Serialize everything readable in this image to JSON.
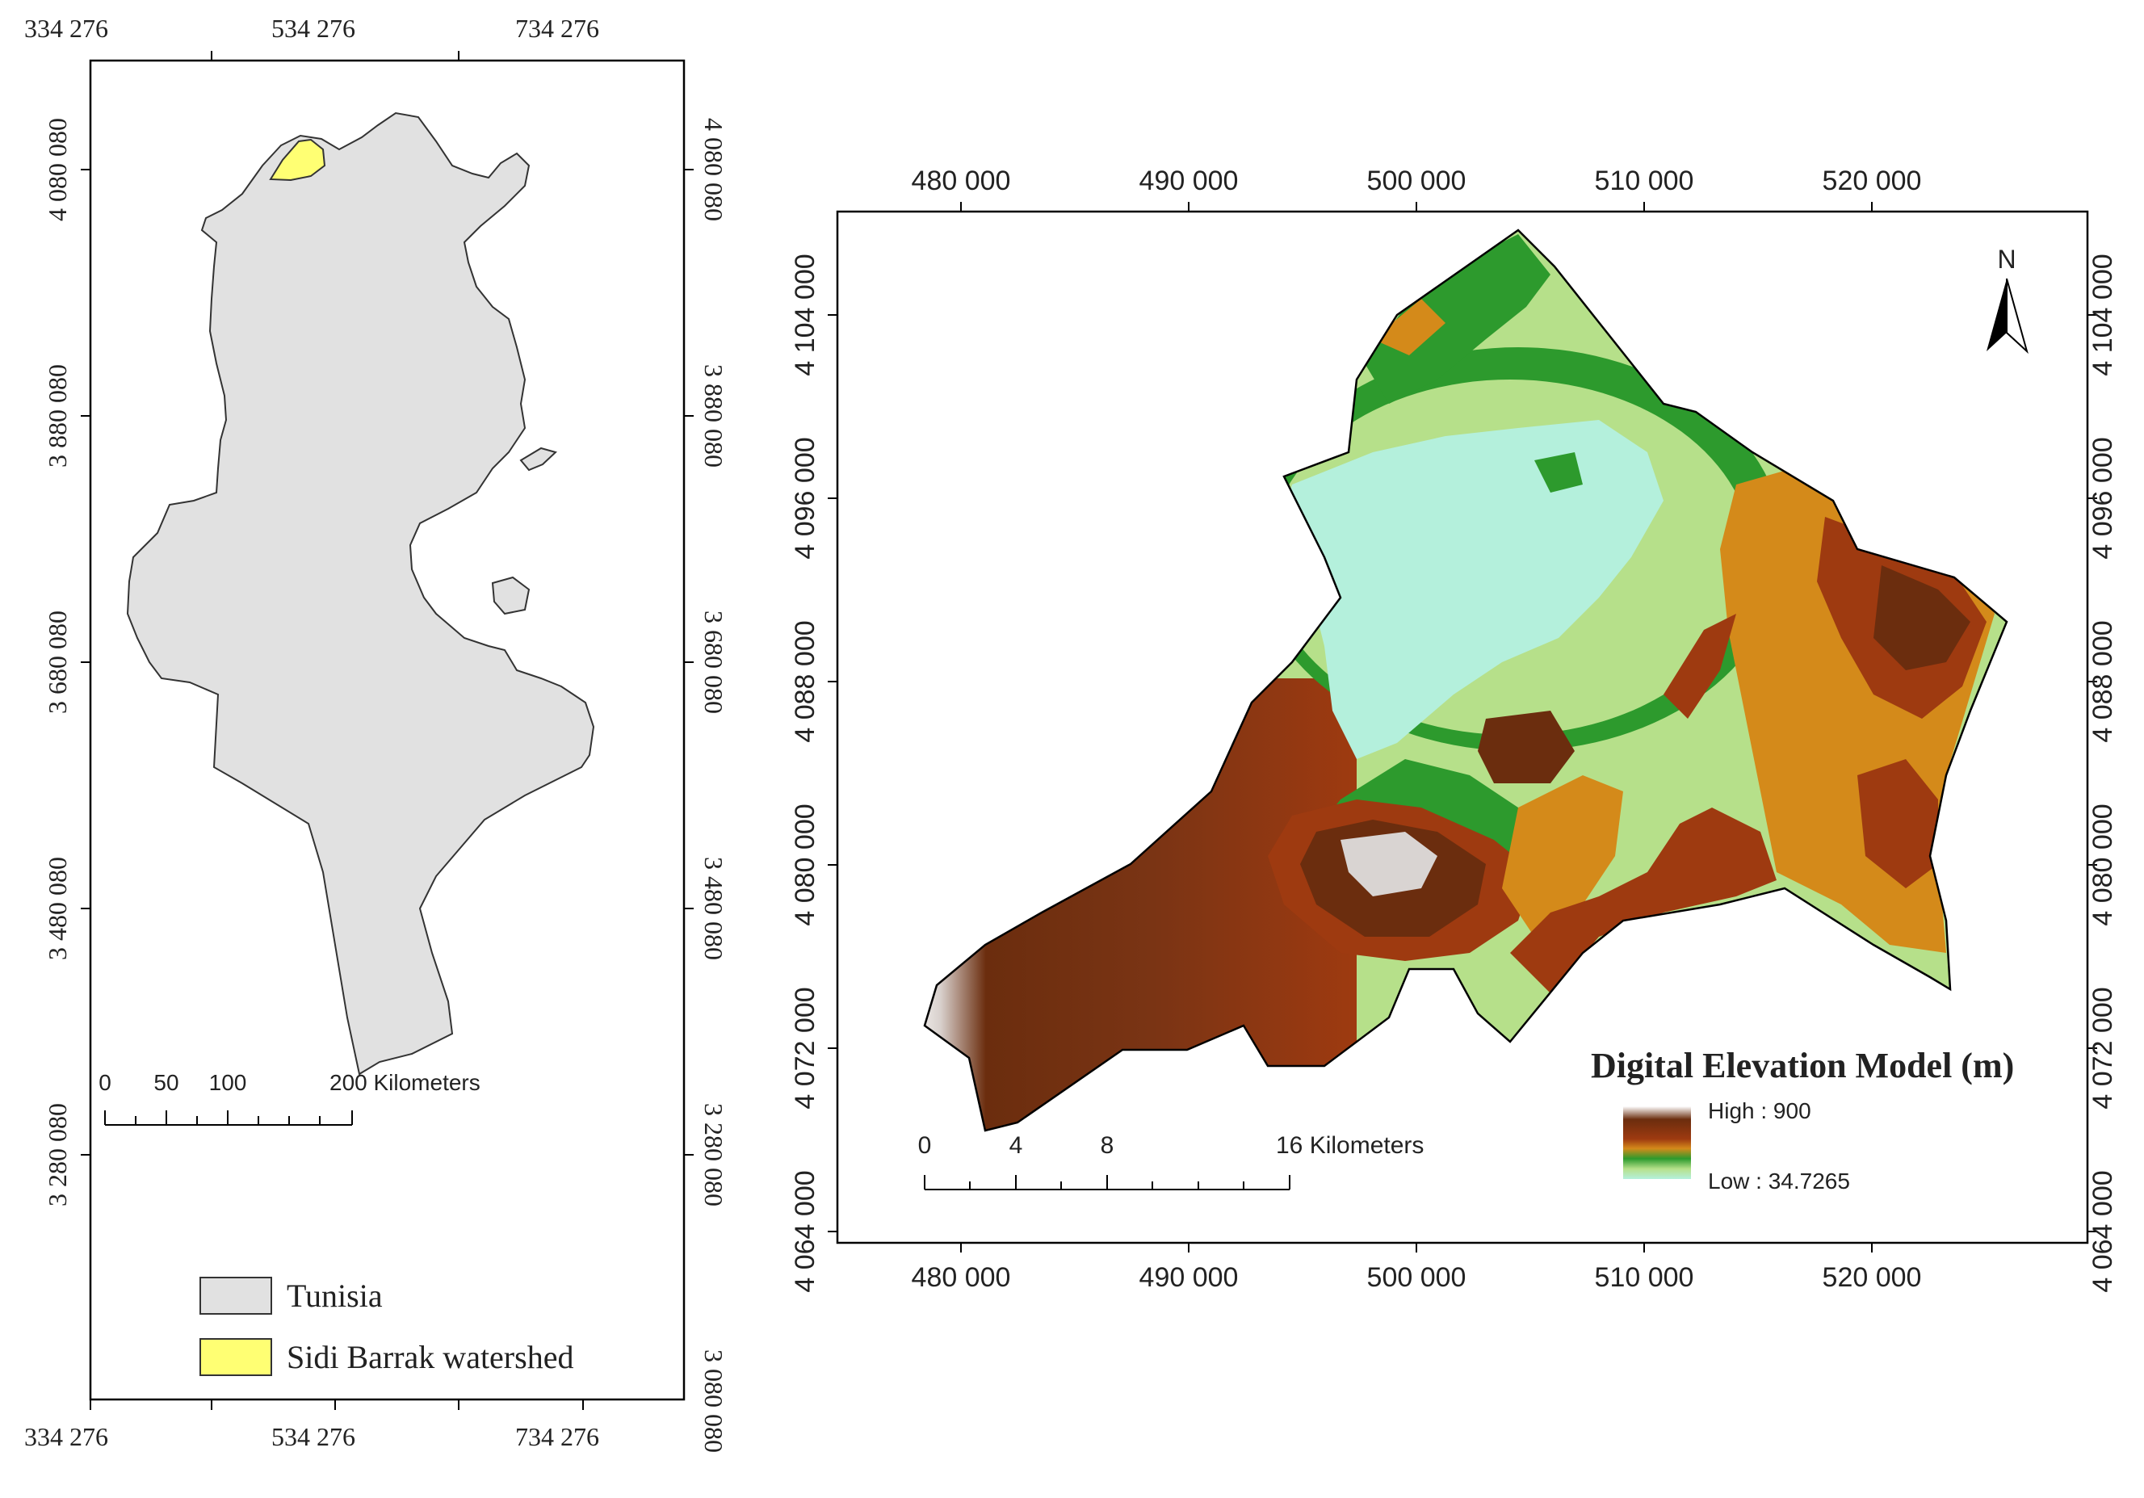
{
  "left_map": {
    "top_ticks": [
      "334 276",
      "534 276",
      "734 276"
    ],
    "bottom_ticks": [
      "334 276",
      "534 276",
      "734 276"
    ],
    "left_ticks": [
      "4 080 080",
      "3 880 080",
      "3 680 080",
      "3 480 080",
      "3 280 080"
    ],
    "right_ticks": [
      "4 080 080",
      "3 880 080",
      "3 680 080",
      "3 480 080",
      "3 280 080",
      "3 080 080"
    ],
    "scalebar": {
      "labels": [
        "0",
        "50",
        "100",
        "200 Kilometers"
      ]
    },
    "legend": [
      {
        "label": "Tunisia",
        "color": "#e1e1e1"
      },
      {
        "label": "Sidi Barrak watershed",
        "color": "#ffff73"
      }
    ]
  },
  "right_map": {
    "x_ticks": [
      "480 000",
      "490 000",
      "500 000",
      "510 000",
      "520 000"
    ],
    "y_ticks": [
      "4 104 000",
      "4 096 000",
      "4 088 000",
      "4 080 000",
      "4 072 000",
      "4 064 000"
    ],
    "north_label": "N",
    "scalebar": {
      "labels": [
        "0",
        "4",
        "8",
        "16 Kilometers"
      ]
    },
    "legend": {
      "title": "Digital Elevation Model (m)",
      "high": "High : 900",
      "low": "Low : 34.7265",
      "ramp": [
        "#ffffff",
        "#6b2d0e",
        "#9e3a10",
        "#d48a1a",
        "#2d9a2d",
        "#b6e08a",
        "#b4f0dc"
      ]
    }
  }
}
